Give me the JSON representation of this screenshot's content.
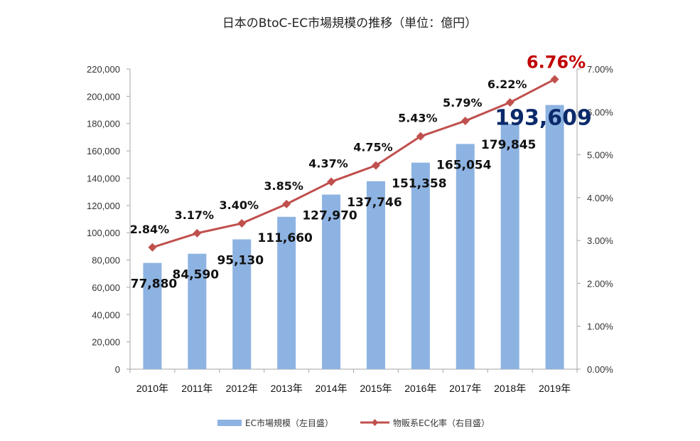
{
  "chart_data": {
    "type": "bar",
    "title": "日本のBtoC-EC市場規模の推移（単位：億円）",
    "categories": [
      "2010年",
      "2011年",
      "2012年",
      "2013年",
      "2014年",
      "2015年",
      "2016年",
      "2017年",
      "2018年",
      "2019年"
    ],
    "series": [
      {
        "name": "EC市場規模（左目盛）",
        "type": "bar",
        "axis": "left",
        "color": "#8DB3E2",
        "values": [
          77880,
          84590,
          95130,
          111660,
          127970,
          137746,
          151358,
          165054,
          179845,
          193609
        ],
        "labels": [
          "77,880",
          "84,590",
          "95,130",
          "111,660",
          "127,970",
          "137,746",
          "151,358",
          "165,054",
          "179,845",
          "193,609"
        ],
        "highlight_last_color": "#0B2A6B"
      },
      {
        "name": "物販系EC化率（右目盛）",
        "type": "line",
        "axis": "right",
        "color": "#C0504D",
        "marker": "diamond",
        "values": [
          2.84,
          3.17,
          3.4,
          3.85,
          4.37,
          4.75,
          5.43,
          5.79,
          6.22,
          6.76
        ],
        "labels": [
          "2.84%",
          "3.17%",
          "3.40%",
          "3.85%",
          "4.37%",
          "4.75%",
          "5.43%",
          "5.79%",
          "6.22%",
          "6.76%"
        ],
        "highlight_last_color": "#C00000"
      }
    ],
    "y_left": {
      "range": [
        0,
        220000
      ],
      "ticks": [
        0,
        20000,
        40000,
        60000,
        80000,
        100000,
        120000,
        140000,
        160000,
        180000,
        200000,
        220000
      ],
      "tick_labels": [
        "0",
        "20,000",
        "40,000",
        "60,000",
        "80,000",
        "100,000",
        "120,000",
        "140,000",
        "160,000",
        "180,000",
        "200,000",
        "220,000"
      ]
    },
    "y_right": {
      "range": [
        0,
        7
      ],
      "ticks": [
        0,
        1,
        2,
        3,
        4,
        5,
        6,
        7
      ],
      "tick_labels": [
        "0.00%",
        "1.00%",
        "2.00%",
        "3.00%",
        "4.00%",
        "5.00%",
        "6.00%",
        "7.00%"
      ]
    },
    "xlabel": "",
    "ylabel": "",
    "grid": false,
    "legend": {
      "position": "bottom",
      "items": [
        "EC市場規模（左目盛）",
        "物販系EC化率（右目盛）"
      ]
    },
    "axis_color": "#A6A6A6"
  }
}
